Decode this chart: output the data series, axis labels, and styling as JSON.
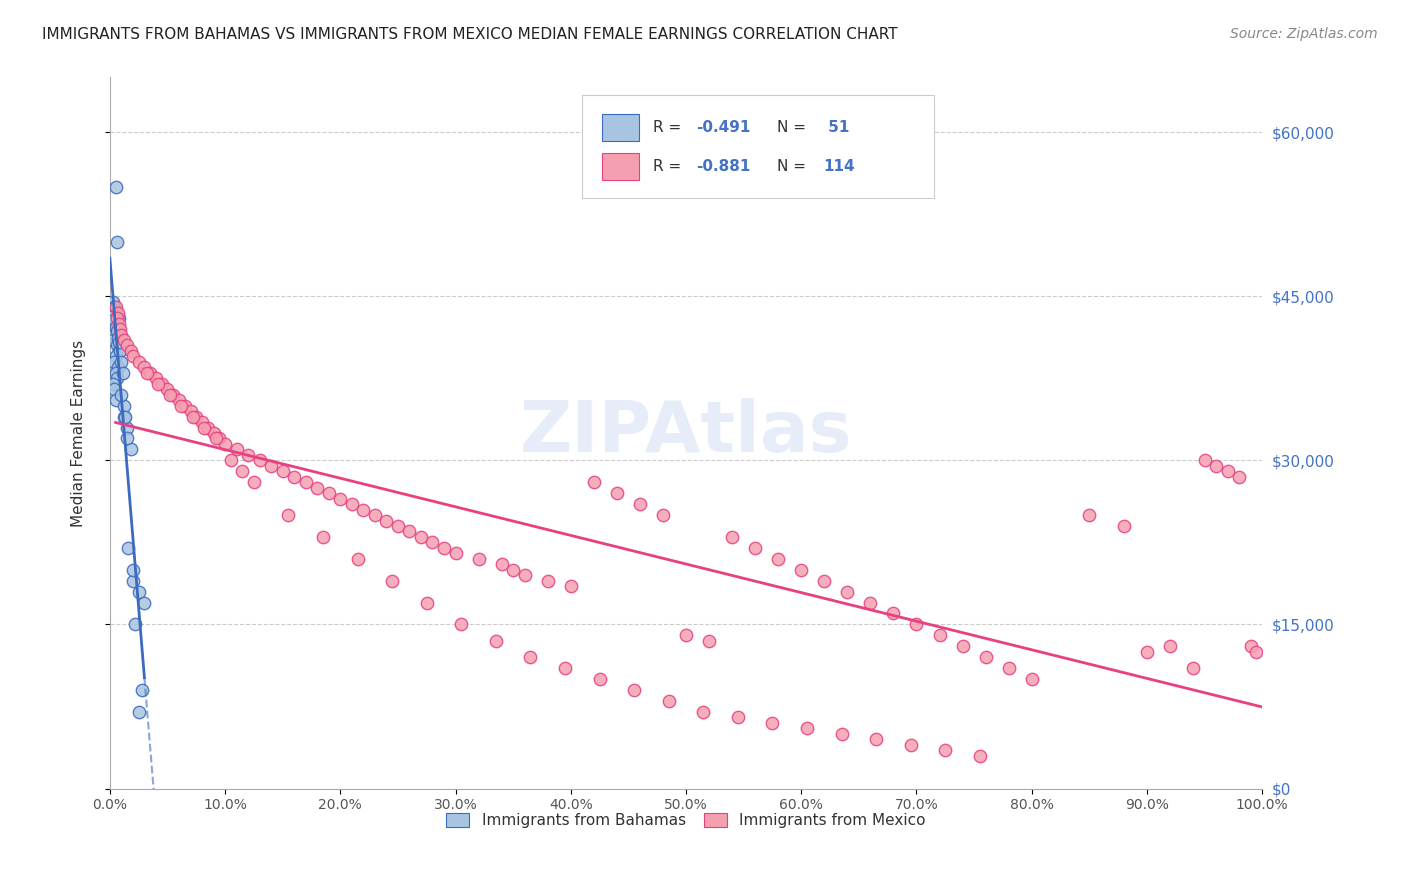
{
  "title": "IMMIGRANTS FROM BAHAMAS VS IMMIGRANTS FROM MEXICO MEDIAN FEMALE EARNINGS CORRELATION CHART",
  "source": "Source: ZipAtlas.com",
  "ylabel": "Median Female Earnings",
  "watermark": "ZIPAtlas",
  "x_min": 0.0,
  "x_max": 100.0,
  "y_min": 0,
  "y_max": 65000,
  "y_ticks": [
    0,
    15000,
    30000,
    45000,
    60000
  ],
  "x_ticks": [
    0,
    10,
    20,
    30,
    40,
    50,
    60,
    70,
    80,
    90,
    100
  ],
  "bahamas_R": -0.491,
  "bahamas_N": 51,
  "mexico_R": -0.881,
  "mexico_N": 114,
  "bahamas_color": "#a8c4e0",
  "bahamas_line_color": "#3a6bbf",
  "mexico_color": "#f4a0b0",
  "mexico_line_color": "#e84080",
  "background_color": "#ffffff",
  "grid_color": "#cccccc",
  "title_color": "#222222",
  "axis_label_color": "#333333",
  "right_tick_color": "#4472c4",
  "bahamas_x": [
    0.5,
    0.6,
    0.3,
    0.4,
    0.2,
    0.5,
    0.7,
    0.4,
    0.3,
    0.6,
    0.8,
    0.5,
    0.4,
    0.7,
    0.5,
    0.6,
    0.3,
    0.4,
    0.8,
    0.5,
    1.2,
    1.5,
    1.8,
    2.0,
    2.5,
    3.0,
    1.0,
    1.2,
    1.5,
    2.0,
    2.5,
    0.3,
    0.4,
    0.5,
    0.6,
    0.7,
    0.8,
    0.9,
    1.0,
    1.1,
    1.3,
    1.6,
    2.2,
    2.8,
    0.2,
    0.3,
    0.4,
    0.5,
    0.6,
    0.7,
    0.8
  ],
  "bahamas_y": [
    55000,
    50000,
    44000,
    43500,
    43000,
    42500,
    42000,
    41500,
    41000,
    40500,
    40000,
    39500,
    39000,
    38500,
    38000,
    37500,
    37000,
    36500,
    43000,
    35500,
    35000,
    33000,
    31000,
    19000,
    18000,
    17000,
    36000,
    34000,
    32000,
    20000,
    7000,
    44500,
    44000,
    43500,
    43000,
    42000,
    41000,
    40000,
    39000,
    38000,
    34000,
    22000,
    15000,
    9000,
    43800,
    43200,
    42800,
    42200,
    41800,
    41200,
    40800
  ],
  "mexico_x": [
    0.5,
    0.7,
    0.6,
    0.8,
    0.9,
    1.0,
    1.2,
    1.5,
    1.8,
    2.0,
    2.5,
    3.0,
    3.5,
    4.0,
    4.5,
    5.0,
    5.5,
    6.0,
    6.5,
    7.0,
    7.5,
    8.0,
    8.5,
    9.0,
    9.5,
    10.0,
    11.0,
    12.0,
    13.0,
    14.0,
    15.0,
    16.0,
    17.0,
    18.0,
    19.0,
    20.0,
    21.0,
    22.0,
    23.0,
    24.0,
    25.0,
    26.0,
    27.0,
    28.0,
    29.0,
    30.0,
    32.0,
    34.0,
    35.0,
    36.0,
    38.0,
    40.0,
    42.0,
    44.0,
    46.0,
    48.0,
    50.0,
    52.0,
    54.0,
    56.0,
    58.0,
    60.0,
    62.0,
    64.0,
    66.0,
    68.0,
    70.0,
    72.0,
    74.0,
    76.0,
    78.0,
    80.0,
    85.0,
    88.0,
    90.0,
    92.0,
    94.0,
    95.0,
    96.0,
    97.0,
    98.0,
    99.0,
    99.5,
    3.2,
    4.2,
    5.2,
    6.2,
    7.2,
    8.2,
    9.2,
    10.5,
    11.5,
    12.5,
    15.5,
    18.5,
    21.5,
    24.5,
    27.5,
    30.5,
    33.5,
    36.5,
    39.5,
    42.5,
    45.5,
    48.5,
    51.5,
    54.5,
    57.5,
    60.5,
    63.5,
    66.5,
    69.5,
    72.5,
    75.5
  ],
  "mexico_y": [
    44000,
    43500,
    43000,
    42500,
    42000,
    41500,
    41000,
    40500,
    40000,
    39500,
    39000,
    38500,
    38000,
    37500,
    37000,
    36500,
    36000,
    35500,
    35000,
    34500,
    34000,
    33500,
    33000,
    32500,
    32000,
    31500,
    31000,
    30500,
    30000,
    29500,
    29000,
    28500,
    28000,
    27500,
    27000,
    26500,
    26000,
    25500,
    25000,
    24500,
    24000,
    23500,
    23000,
    22500,
    22000,
    21500,
    21000,
    20500,
    20000,
    19500,
    19000,
    18500,
    28000,
    27000,
    26000,
    25000,
    14000,
    13500,
    23000,
    22000,
    21000,
    20000,
    19000,
    18000,
    17000,
    16000,
    15000,
    14000,
    13000,
    12000,
    11000,
    10000,
    25000,
    24000,
    12500,
    13000,
    11000,
    30000,
    29500,
    29000,
    28500,
    13000,
    12500,
    38000,
    37000,
    36000,
    35000,
    34000,
    33000,
    32000,
    30000,
    29000,
    28000,
    25000,
    23000,
    21000,
    19000,
    17000,
    15000,
    13500,
    12000,
    11000,
    10000,
    9000,
    8000,
    7000,
    6500,
    6000,
    5500,
    5000,
    4500,
    4000,
    3500,
    3000
  ]
}
